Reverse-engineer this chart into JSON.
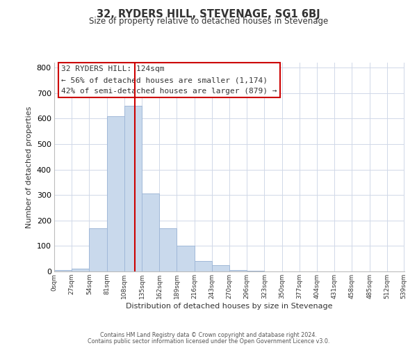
{
  "title": "32, RYDERS HILL, STEVENAGE, SG1 6BJ",
  "subtitle": "Size of property relative to detached houses in Stevenage",
  "xlabel": "Distribution of detached houses by size in Stevenage",
  "ylabel": "Number of detached properties",
  "bin_edges": [
    0,
    27,
    54,
    81,
    108,
    135,
    162,
    189,
    216,
    243,
    270,
    297,
    324,
    351,
    378,
    405,
    432,
    459,
    486,
    513,
    540
  ],
  "bin_counts": [
    5,
    10,
    170,
    610,
    650,
    305,
    170,
    100,
    40,
    25,
    5,
    2,
    0,
    0,
    0,
    0,
    0,
    0,
    0,
    0
  ],
  "bar_color": "#c9d9ec",
  "bar_edgecolor": "#a0b8d8",
  "vline_x": 124,
  "vline_color": "#cc0000",
  "annotation_title": "32 RYDERS HILL: 124sqm",
  "annotation_line1": "← 56% of detached houses are smaller (1,174)",
  "annotation_line2": "42% of semi-detached houses are larger (879) →",
  "annotation_box_color": "#cc0000",
  "ylim": [
    0,
    820
  ],
  "xlim": [
    0,
    540
  ],
  "yticks": [
    0,
    100,
    200,
    300,
    400,
    500,
    600,
    700,
    800
  ],
  "tick_positions": [
    0,
    27,
    54,
    81,
    108,
    135,
    162,
    189,
    216,
    243,
    270,
    297,
    324,
    351,
    378,
    405,
    432,
    459,
    486,
    513,
    539
  ],
  "tick_labels": [
    "0sqm",
    "27sqm",
    "54sqm",
    "81sqm",
    "108sqm",
    "135sqm",
    "162sqm",
    "189sqm",
    "216sqm",
    "243sqm",
    "270sqm",
    "296sqm",
    "323sqm",
    "350sqm",
    "377sqm",
    "404sqm",
    "431sqm",
    "458sqm",
    "485sqm",
    "512sqm",
    "539sqm"
  ],
  "footer_line1": "Contains HM Land Registry data © Crown copyright and database right 2024.",
  "footer_line2": "Contains public sector information licensed under the Open Government Licence v3.0.",
  "background_color": "#ffffff",
  "grid_color": "#d0d8e8"
}
